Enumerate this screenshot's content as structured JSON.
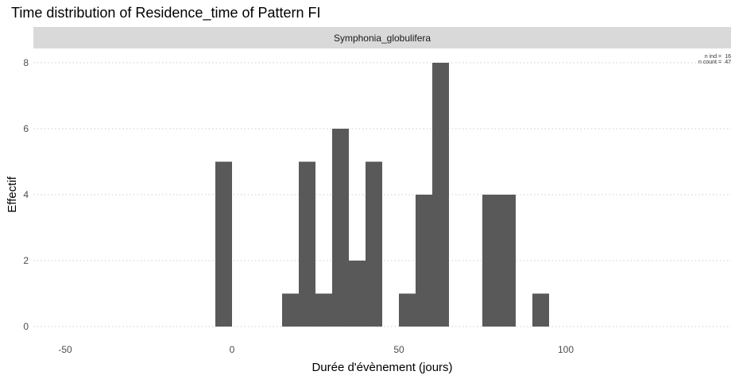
{
  "chart_data": {
    "type": "bar",
    "title": "Time distribution of Residence_time of Pattern FI",
    "facet_label": "Symphonia_globulifera",
    "xlabel": "Durée d'évènement (jours)",
    "ylabel": "Effectif",
    "xlim": [
      -55,
      150
    ],
    "ylim": [
      0,
      8
    ],
    "x_ticks": [
      -50,
      0,
      50,
      100
    ],
    "y_ticks": [
      0,
      2,
      4,
      6,
      8
    ],
    "grid": true,
    "bin_width": 5,
    "bins": [
      {
        "x": -5,
        "count": 5
      },
      {
        "x": 15,
        "count": 1
      },
      {
        "x": 20,
        "count": 5
      },
      {
        "x": 25,
        "count": 1
      },
      {
        "x": 30,
        "count": 6
      },
      {
        "x": 35,
        "count": 2
      },
      {
        "x": 40,
        "count": 5
      },
      {
        "x": 50,
        "count": 1
      },
      {
        "x": 55,
        "count": 4
      },
      {
        "x": 60,
        "count": 8
      },
      {
        "x": 75,
        "count": 4
      },
      {
        "x": 80,
        "count": 4
      },
      {
        "x": 90,
        "count": 1
      }
    ],
    "bar_color": "#595959",
    "strip_color": "#d9d9d9",
    "grid_color": "#cccccc",
    "annotations": [
      {
        "label": "n ind =",
        "value": "16"
      },
      {
        "label": "n count =",
        "value": "47"
      }
    ]
  }
}
